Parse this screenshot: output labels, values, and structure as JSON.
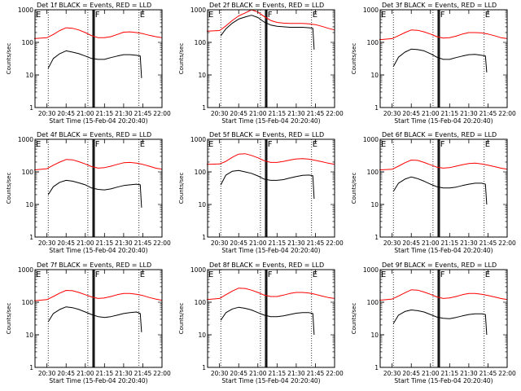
{
  "colors": {
    "events": "#000000",
    "lld": "#ff0000",
    "background": "#ffffff",
    "axes": "#000000"
  },
  "chart_data": {
    "type": "line",
    "layout": "3x3 grid",
    "y_scale": "log",
    "ylim": [
      1,
      1000
    ],
    "ytick_labels": [
      "1",
      "10",
      "100",
      "1000"
    ],
    "xlim": [
      "20:20:40",
      "22:00:00"
    ],
    "xtick_labels": [
      "20:30",
      "20:45",
      "21:00",
      "21:15",
      "21:30",
      "21:45",
      "22:00"
    ],
    "xlabel": "Start Time (15-Feb-04 20:20:40)",
    "ylabel": "Counts/sec",
    "event_marker_labels": [
      "E",
      "F",
      "E"
    ],
    "dotted_markers": [
      "20:31:00",
      "21:02:00",
      "21:42:00"
    ],
    "solid_markers": [
      "21:06:00",
      "21:07:00"
    ],
    "panels": [
      {
        "title": "Det 1f BLACK = Events, RED = LLD",
        "series": [
          {
            "name": "Events",
            "color": "#000000",
            "x": [
              "20:31",
              "20:35",
              "20:40",
              "20:45",
              "20:50",
              "20:55",
              "21:00",
              "21:05",
              "21:10",
              "21:15",
              "21:20",
              "21:25",
              "21:30",
              "21:35",
              "21:40",
              "21:43",
              "21:44"
            ],
            "values": [
              16,
              32,
              45,
              55,
              50,
              45,
              38,
              32,
              30,
              30,
              34,
              38,
              42,
              42,
              40,
              38,
              8
            ]
          },
          {
            "name": "LLD",
            "color": "#ff0000",
            "x": [
              "20:20",
              "20:30",
              "20:35",
              "20:40",
              "20:45",
              "20:50",
              "20:55",
              "21:00",
              "21:05",
              "21:10",
              "21:15",
              "21:20",
              "21:25",
              "21:30",
              "21:35",
              "21:40",
              "21:45",
              "21:50",
              "21:55",
              "22:00"
            ],
            "values": [
              130,
              140,
              175,
              230,
              280,
              270,
              240,
              200,
              160,
              140,
              140,
              150,
              175,
              205,
              210,
              200,
              185,
              165,
              150,
              140
            ]
          }
        ]
      },
      {
        "title": "Det 2f BLACK = Events, RED = LLD",
        "series": [
          {
            "name": "Events",
            "color": "#000000",
            "x": [
              "20:31",
              "20:35",
              "20:40",
              "20:45",
              "20:50",
              "20:55",
              "21:00",
              "21:05",
              "21:10",
              "21:15",
              "21:20",
              "21:25",
              "21:30",
              "21:35",
              "21:40",
              "21:43",
              "21:44"
            ],
            "values": [
              160,
              260,
              390,
              520,
              600,
              680,
              580,
              420,
              340,
              310,
              300,
              290,
              290,
              290,
              280,
              270,
              60
            ]
          },
          {
            "name": "LLD",
            "color": "#ff0000",
            "x": [
              "20:20",
              "20:30",
              "20:35",
              "20:40",
              "20:45",
              "20:50",
              "20:55",
              "21:00",
              "21:05",
              "21:10",
              "21:15",
              "21:20",
              "21:25",
              "21:30",
              "21:35",
              "21:40",
              "21:45",
              "21:50",
              "21:55",
              "22:00"
            ],
            "values": [
              220,
              230,
              320,
              470,
              650,
              800,
              1000,
              850,
              620,
              470,
              410,
              390,
              380,
              380,
              380,
              370,
              350,
              310,
              270,
              240
            ]
          }
        ]
      },
      {
        "title": "Det 3f BLACK = Events, RED = LLD",
        "series": [
          {
            "name": "Events",
            "color": "#000000",
            "x": [
              "20:31",
              "20:35",
              "20:40",
              "20:45",
              "20:50",
              "20:55",
              "21:00",
              "21:05",
              "21:10",
              "21:15",
              "21:20",
              "21:25",
              "21:30",
              "21:35",
              "21:40",
              "21:43",
              "21:44"
            ],
            "values": [
              18,
              35,
              50,
              62,
              60,
              55,
              45,
              35,
              30,
              30,
              34,
              38,
              42,
              43,
              40,
              38,
              12
            ]
          },
          {
            "name": "LLD",
            "color": "#ff0000",
            "x": [
              "20:20",
              "20:30",
              "20:35",
              "20:40",
              "20:45",
              "20:50",
              "20:55",
              "21:00",
              "21:05",
              "21:10",
              "21:15",
              "21:20",
              "21:25",
              "21:30",
              "21:35",
              "21:40",
              "21:45",
              "21:50",
              "21:55",
              "22:00"
            ],
            "values": [
              120,
              130,
              160,
              200,
              240,
              235,
              210,
              180,
              150,
              135,
              140,
              155,
              180,
              200,
              200,
              195,
              180,
              160,
              140,
              130
            ]
          }
        ]
      },
      {
        "title": "Det 4f BLACK = Events, RED = LLD",
        "series": [
          {
            "name": "Events",
            "color": "#000000",
            "x": [
              "20:31",
              "20:35",
              "20:40",
              "20:45",
              "20:50",
              "20:55",
              "21:00",
              "21:05",
              "21:10",
              "21:15",
              "21:20",
              "21:25",
              "21:30",
              "21:35",
              "21:40",
              "21:43",
              "21:44"
            ],
            "values": [
              20,
              35,
              48,
              55,
              52,
              46,
              40,
              32,
              29,
              28,
              30,
              34,
              38,
              40,
              42,
              40,
              8
            ]
          },
          {
            "name": "LLD",
            "color": "#ff0000",
            "x": [
              "20:20",
              "20:30",
              "20:35",
              "20:40",
              "20:45",
              "20:50",
              "20:55",
              "21:00",
              "21:05",
              "21:10",
              "21:15",
              "21:20",
              "21:25",
              "21:30",
              "21:35",
              "21:40",
              "21:45",
              "21:50",
              "21:55",
              "22:00"
            ],
            "values": [
              115,
              125,
              160,
              200,
              240,
              235,
              205,
              175,
              145,
              130,
              135,
              150,
              170,
              190,
              195,
              185,
              170,
              150,
              130,
              120
            ]
          }
        ]
      },
      {
        "title": "Det 5f BLACK = Events, RED = LLD",
        "series": [
          {
            "name": "Events",
            "color": "#000000",
            "x": [
              "20:31",
              "20:35",
              "20:40",
              "20:45",
              "20:50",
              "20:55",
              "21:00",
              "21:05",
              "21:10",
              "21:15",
              "21:20",
              "21:25",
              "21:30",
              "21:35",
              "21:40",
              "21:43",
              "21:44"
            ],
            "values": [
              40,
              80,
              105,
              110,
              100,
              90,
              75,
              60,
              55,
              55,
              58,
              65,
              72,
              78,
              80,
              76,
              15
            ]
          },
          {
            "name": "LLD",
            "color": "#ff0000",
            "x": [
              "20:20",
              "20:30",
              "20:35",
              "20:40",
              "20:45",
              "20:50",
              "20:55",
              "21:00",
              "21:05",
              "21:10",
              "21:15",
              "21:20",
              "21:25",
              "21:30",
              "21:35",
              "21:40",
              "21:45",
              "21:50",
              "21:55",
              "22:00"
            ],
            "values": [
              170,
              175,
              210,
              280,
              350,
              360,
              320,
              270,
              220,
              195,
              195,
              210,
              230,
              250,
              255,
              245,
              225,
              205,
              185,
              170
            ]
          }
        ]
      },
      {
        "title": "Det 6f BLACK = Events, RED = LLD",
        "series": [
          {
            "name": "Events",
            "color": "#000000",
            "x": [
              "20:31",
              "20:35",
              "20:40",
              "20:45",
              "20:50",
              "20:55",
              "21:00",
              "21:05",
              "21:10",
              "21:15",
              "21:20",
              "21:25",
              "21:30",
              "21:35",
              "21:40",
              "21:43",
              "21:44"
            ],
            "values": [
              25,
              45,
              60,
              70,
              62,
              52,
              42,
              35,
              32,
              32,
              34,
              38,
              42,
              45,
              45,
              42,
              10
            ]
          },
          {
            "name": "LLD",
            "color": "#ff0000",
            "x": [
              "20:20",
              "20:30",
              "20:35",
              "20:40",
              "20:45",
              "20:50",
              "20:55",
              "21:00",
              "21:05",
              "21:10",
              "21:15",
              "21:20",
              "21:25",
              "21:30",
              "21:35",
              "21:40",
              "21:45",
              "21:50",
              "21:55",
              "22:00"
            ],
            "values": [
              115,
              120,
              150,
              190,
              230,
              225,
              195,
              165,
              140,
              130,
              135,
              150,
              165,
              180,
              185,
              175,
              160,
              145,
              130,
              120
            ]
          }
        ]
      },
      {
        "title": "Det 7f BLACK = Events, RED = LLD",
        "series": [
          {
            "name": "Events",
            "color": "#000000",
            "x": [
              "20:31",
              "20:35",
              "20:40",
              "20:45",
              "20:50",
              "20:55",
              "21:00",
              "21:05",
              "21:10",
              "21:15",
              "21:20",
              "21:25",
              "21:30",
              "21:35",
              "21:40",
              "21:43",
              "21:44"
            ],
            "values": [
              25,
              45,
              60,
              72,
              68,
              60,
              50,
              42,
              36,
              34,
              36,
              40,
              45,
              48,
              50,
              45,
              12
            ]
          },
          {
            "name": "LLD",
            "color": "#ff0000",
            "x": [
              "20:20",
              "20:30",
              "20:35",
              "20:40",
              "20:45",
              "20:50",
              "20:55",
              "21:00",
              "21:05",
              "21:10",
              "21:15",
              "21:20",
              "21:25",
              "21:30",
              "21:35",
              "21:40",
              "21:45",
              "21:50",
              "21:55",
              "22:00"
            ],
            "values": [
              110,
              120,
              150,
              190,
              230,
              225,
              200,
              170,
              145,
              130,
              135,
              150,
              170,
              185,
              185,
              175,
              160,
              140,
              125,
              115
            ]
          }
        ]
      },
      {
        "title": "Det 8f BLACK = Events, RED = LLD",
        "series": [
          {
            "name": "Events",
            "color": "#000000",
            "x": [
              "20:31",
              "20:35",
              "20:40",
              "20:45",
              "20:50",
              "20:55",
              "21:00",
              "21:05",
              "21:10",
              "21:15",
              "21:20",
              "21:25",
              "21:30",
              "21:35",
              "21:40",
              "21:43",
              "21:44"
            ],
            "values": [
              28,
              48,
              62,
              70,
              65,
              58,
              48,
              40,
              36,
              36,
              38,
              42,
              46,
              48,
              48,
              45,
              10
            ]
          },
          {
            "name": "LLD",
            "color": "#ff0000",
            "x": [
              "20:20",
              "20:30",
              "20:35",
              "20:40",
              "20:45",
              "20:50",
              "20:55",
              "21:00",
              "21:05",
              "21:10",
              "21:15",
              "21:20",
              "21:25",
              "21:30",
              "21:35",
              "21:40",
              "21:45",
              "21:50",
              "21:55",
              "22:00"
            ],
            "values": [
              120,
              130,
              170,
              220,
              270,
              265,
              235,
              200,
              165,
              150,
              150,
              165,
              185,
              200,
              200,
              190,
              175,
              155,
              140,
              130
            ]
          }
        ]
      },
      {
        "title": "Det 9f BLACK = Events, RED = LLD",
        "series": [
          {
            "name": "Events",
            "color": "#000000",
            "x": [
              "20:31",
              "20:35",
              "20:40",
              "20:45",
              "20:50",
              "20:55",
              "21:00",
              "21:05",
              "21:10",
              "21:15",
              "21:20",
              "21:25",
              "21:30",
              "21:35",
              "21:40",
              "21:43",
              "21:44"
            ],
            "values": [
              22,
              40,
              52,
              58,
              55,
              50,
              42,
              35,
              32,
              31,
              34,
              38,
              42,
              44,
              44,
              42,
              10
            ]
          },
          {
            "name": "LLD",
            "color": "#ff0000",
            "x": [
              "20:20",
              "20:30",
              "20:35",
              "20:40",
              "20:45",
              "20:50",
              "20:55",
              "21:00",
              "21:05",
              "21:10",
              "21:15",
              "21:20",
              "21:25",
              "21:30",
              "21:35",
              "21:40",
              "21:45",
              "21:50",
              "21:55",
              "22:00"
            ],
            "values": [
              115,
              125,
              155,
              195,
              240,
              235,
              205,
              175,
              145,
              130,
              135,
              150,
              170,
              185,
              185,
              175,
              160,
              145,
              130,
              120
            ]
          }
        ]
      }
    ]
  }
}
